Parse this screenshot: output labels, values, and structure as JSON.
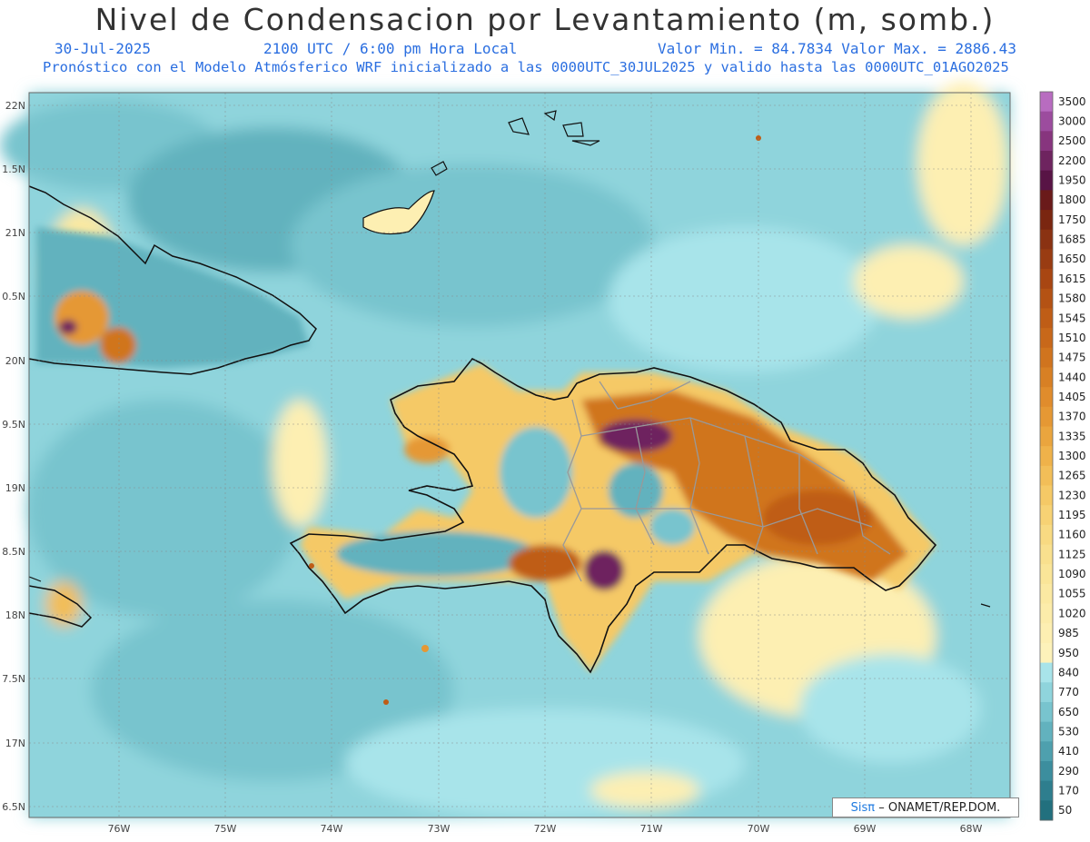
{
  "header": {
    "title": "Nivel de Condensacion por Levantamiento (m, somb.)",
    "date": "30-Jul-2025",
    "time": "2100 UTC / 6:00 pm Hora Local",
    "minmax": "Valor Min. = 84.7834  Valor Max. = 2886.43",
    "forecast": "Pronóstico con el Modelo Atmósferico WRF inicializado a las 0000UTC_30JUL2025 y valido hasta las  0000UTC_01AGO2025"
  },
  "axes": {
    "lat_labels": [
      "22N",
      "1.5N",
      "21N",
      "0.5N",
      "20N",
      "9.5N",
      "19N",
      "8.5N",
      "18N",
      "7.5N",
      "17N",
      "6.5N"
    ],
    "lon_labels": [
      "76W",
      "75W",
      "74W",
      "73W",
      "72W",
      "71W",
      "70W",
      "69W",
      "68W"
    ]
  },
  "colorbar": {
    "labels": [
      "3500",
      "3000",
      "2500",
      "2200",
      "1950",
      "1800",
      "1750",
      "1685",
      "1650",
      "1615",
      "1580",
      "1545",
      "1510",
      "1475",
      "1440",
      "1405",
      "1370",
      "1335",
      "1300",
      "1265",
      "1230",
      "1195",
      "1160",
      "1125",
      "1090",
      "1055",
      "1020",
      "985",
      "950",
      "840",
      "770",
      "650",
      "530",
      "410",
      "290",
      "170",
      "50"
    ],
    "colors": [
      "#b86cc0",
      "#9c4c9e",
      "#87357e",
      "#6e245f",
      "#581445",
      "#6a1a1a",
      "#7a2610",
      "#8a3212",
      "#993c12",
      "#a84612",
      "#b45214",
      "#bf5d16",
      "#c8681a",
      "#d0741e",
      "#d88024",
      "#e08c2c",
      "#e59834",
      "#eaa53e",
      "#efb24a",
      "#f2be58",
      "#f5c966",
      "#f7d274",
      "#f8da82",
      "#f9e08e",
      "#faE598",
      "#fbe9a2",
      "#fcecaa",
      "#fdefb2",
      "#fdf2ba",
      "#a8e4ea",
      "#8fd4dc",
      "#78c4ce",
      "#62b2be",
      "#4ea0ae",
      "#3c8e9e",
      "#2e7e8e",
      "#22707e"
    ]
  },
  "credit": {
    "logo": "Sisπ",
    "text": "– ONAMET/REP.DOM."
  }
}
